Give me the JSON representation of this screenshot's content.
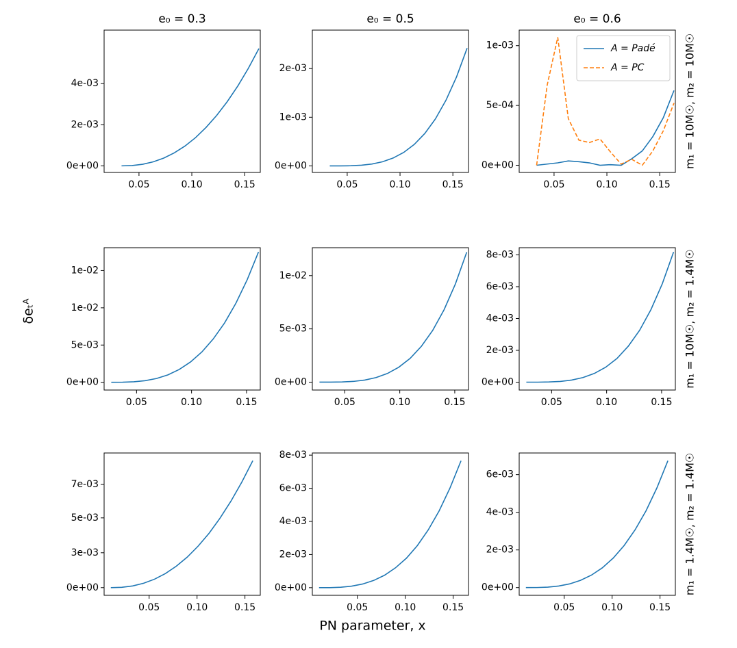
{
  "xlabel": "PN parameter, x",
  "ylabel": "δeₜᴬ",
  "chart_data": [
    {
      "type": "line",
      "title": "e₀ = 0.3",
      "x": [
        0.0335,
        0.0435,
        0.0535,
        0.0635,
        0.0735,
        0.0835,
        0.0935,
        0.1035,
        0.1135,
        0.1235,
        0.1335,
        0.1435,
        0.1535,
        0.1635
      ],
      "series": [
        {
          "name": "A = Padé",
          "color": "#1f77b4",
          "linestyle": "solid",
          "values": [
            0,
            1.56e-05,
            7.7e-05,
            0.000196,
            0.000379,
            0.000633,
            0.000963,
            0.00137,
            0.00187,
            0.00245,
            0.00312,
            0.00388,
            0.00474,
            0.0057
          ]
        }
      ],
      "xlim": [
        0.017,
        0.1648
      ],
      "ylim": [
        -0.00032,
        0.0066
      ],
      "xticks": [
        0.05,
        {
          "value": 0.1,
          "label": "0.10"
        },
        0.15
      ],
      "yticks": [
        {
          "value": 0,
          "label": "0e+00"
        },
        {
          "value": 0.002,
          "label": "2e-03"
        },
        {
          "value": 0.004,
          "label": "4e-03"
        }
      ]
    },
    {
      "type": "line",
      "title": "e₀ = 0.5",
      "x": [
        0.0335,
        0.0435,
        0.0535,
        0.0635,
        0.0735,
        0.0835,
        0.0935,
        0.1035,
        0.1135,
        0.1235,
        0.1335,
        0.1435,
        0.1535,
        0.1635
      ],
      "series": [
        {
          "name": "A = Padé",
          "color": "#1f77b4",
          "linestyle": "solid",
          "values": [
            0,
            3e-07,
            3.5e-06,
            1.43e-05,
            3.9e-05,
            8.54e-05,
            0.000162,
            0.000277,
            0.000442,
            0.000668,
            0.000966,
            0.00135,
            0.00183,
            0.00242
          ]
        }
      ],
      "xlim": [
        0.017,
        0.1648
      ],
      "ylim": [
        -0.000134,
        0.00279
      ],
      "xticks": [
        0.05,
        {
          "value": 0.1,
          "label": "0.10"
        },
        0.15
      ],
      "yticks": [
        {
          "value": 0,
          "label": "0e+00"
        },
        {
          "value": 0.001,
          "label": "1e-03"
        },
        {
          "value": 0.002,
          "label": "2e-03"
        }
      ]
    },
    {
      "type": "line",
      "title": "e₀ = 0.6",
      "row_label": "m₁ = 10M☉, m₂ = 10M☉",
      "legend": "upper right",
      "x": [
        0.0335,
        0.0435,
        0.0535,
        0.0635,
        0.0735,
        0.0835,
        0.0935,
        0.1035,
        0.1135,
        0.1235,
        0.1335,
        0.1435,
        0.1535,
        0.1635
      ],
      "series": [
        {
          "name": "A = Padé",
          "color": "#1f77b4",
          "linestyle": "solid",
          "values": [
            0,
            1e-05,
            2e-05,
            3.6e-05,
            3e-05,
            2e-05,
            0,
            5e-06,
            0,
            5.4e-05,
            0.00012,
            0.00024,
            0.0004,
            0.000625
          ]
        },
        {
          "name": "A = PC",
          "color": "#ff7f0e",
          "linestyle": "dashed",
          "values": [
            0,
            0.00067,
            0.00107,
            0.00039,
            0.00021,
            0.00019,
            0.00022,
            0.00011,
            1e-05,
            5e-05,
            0,
            0.00012,
            0.00029,
            0.00052
          ]
        }
      ],
      "xlim": [
        0.017,
        0.1648
      ],
      "ylim": [
        -6e-05,
        0.00113
      ],
      "xticks": [
        0.05,
        {
          "value": 0.1,
          "label": "0.10"
        },
        0.15
      ],
      "yticks": [
        {
          "value": 0,
          "label": "0e+00"
        },
        {
          "value": 0.0005,
          "label": "5e-04"
        },
        {
          "value": 0.001,
          "label": "1e-03"
        }
      ]
    },
    {
      "type": "line",
      "x": [
        0.027,
        0.0373,
        0.0476,
        0.0579,
        0.0682,
        0.0785,
        0.0888,
        0.0991,
        0.1094,
        0.1197,
        0.13,
        0.1403,
        0.1506,
        0.1609
      ],
      "series": [
        {
          "name": "A = Padé",
          "color": "#1f77b4",
          "linestyle": "solid",
          "values": [
            0,
            7.7e-06,
            6.1e-05,
            0.000207,
            0.000489,
            0.000956,
            0.00165,
            0.00262,
            0.00391,
            0.00558,
            0.00764,
            0.01018,
            0.01322,
            0.0168
          ]
        }
      ],
      "xlim": [
        0.0205,
        0.1625
      ],
      "ylim": [
        -0.001,
        0.01735
      ],
      "xticks": [
        0.05,
        {
          "value": 0.1,
          "label": "0.10"
        },
        0.15
      ],
      "yticks": [
        {
          "value": 0,
          "label": "0e+00"
        },
        {
          "value": 0.0048,
          "label": "5e-03"
        },
        {
          "value": 0.0096,
          "label": "1e-02"
        },
        {
          "value": 0.0144,
          "label": "1e-02"
        }
      ]
    },
    {
      "type": "line",
      "x": [
        0.027,
        0.0373,
        0.0476,
        0.0579,
        0.0682,
        0.0785,
        0.0888,
        0.0991,
        0.1094,
        0.1197,
        0.13,
        0.1403,
        0.1506,
        0.1609
      ],
      "series": [
        {
          "name": "A = Padé",
          "color": "#1f77b4",
          "linestyle": "solid",
          "values": [
            0,
            1.6e-06,
            1.7e-05,
            7.2e-05,
            0.000196,
            0.000431,
            0.000815,
            0.0014,
            0.00223,
            0.00337,
            0.00487,
            0.0068,
            0.00922,
            0.0122
          ]
        }
      ],
      "xlim": [
        0.0205,
        0.1625
      ],
      "ylim": [
        -0.00074,
        0.01262
      ],
      "xticks": [
        0.05,
        {
          "value": 0.1,
          "label": "0.10"
        },
        0.15
      ],
      "yticks": [
        {
          "value": 0,
          "label": "0e+00"
        },
        {
          "value": 0.005,
          "label": "5e-03"
        },
        {
          "value": 0.01,
          "label": "1e-02"
        }
      ]
    },
    {
      "type": "line",
      "row_label": "m₁ = 10M☉, m₂ = 1.4M☉",
      "x": [
        0.027,
        0.0373,
        0.0476,
        0.0579,
        0.0682,
        0.0785,
        0.0888,
        0.0991,
        0.1094,
        0.1197,
        0.13,
        0.1403,
        0.1506,
        0.1609
      ],
      "series": [
        {
          "name": "A = Padé",
          "color": "#1f77b4",
          "linestyle": "solid",
          "values": [
            0,
            1e-06,
            1.2e-05,
            4.8e-05,
            0.000132,
            0.000289,
            0.000546,
            0.000937,
            0.00149,
            0.00226,
            0.00326,
            0.00456,
            0.00618,
            0.00818
          ]
        }
      ],
      "xlim": [
        0.0205,
        0.1625
      ],
      "ylim": [
        -0.000494,
        0.00845
      ],
      "xticks": [
        0.05,
        {
          "value": 0.1,
          "label": "0.10"
        },
        0.15
      ],
      "yticks": [
        {
          "value": 0,
          "label": "0e+00"
        },
        {
          "value": 0.002,
          "label": "2e-03"
        },
        {
          "value": 0.004,
          "label": "4e-03"
        },
        {
          "value": 0.006,
          "label": "6e-03"
        },
        {
          "value": 0.008,
          "label": "8e-03"
        }
      ]
    },
    {
      "type": "line",
      "x": [
        0.01,
        0.0214,
        0.0328,
        0.0442,
        0.0556,
        0.067,
        0.0784,
        0.0898,
        0.1012,
        0.1126,
        0.124,
        0.1354,
        0.1468,
        0.1582
      ],
      "series": [
        {
          "name": "A = Padé",
          "color": "#1f77b4",
          "linestyle": "solid",
          "values": [
            0,
            2.5e-05,
            0.000123,
            0.000312,
            0.000605,
            0.00101,
            0.00154,
            0.00219,
            0.00298,
            0.0039,
            0.00498,
            0.0062,
            0.00757,
            0.0091
          ]
        }
      ],
      "xlim": [
        0.003,
        0.166
      ],
      "ylim": [
        -0.00055,
        0.00965
      ],
      "xticks": [
        0.05,
        {
          "value": 0.1,
          "label": "0.10"
        },
        0.15
      ],
      "yticks": [
        {
          "value": 0,
          "label": "0e+00"
        },
        {
          "value": 0.0025,
          "label": "3e-03"
        },
        {
          "value": 0.005,
          "label": "5e-03"
        },
        {
          "value": 0.0074,
          "label": "7e-03"
        }
      ]
    },
    {
      "type": "line",
      "x": [
        0.01,
        0.0214,
        0.0328,
        0.0442,
        0.0556,
        0.067,
        0.0784,
        0.0898,
        0.1012,
        0.1126,
        0.124,
        0.1354,
        0.1468,
        0.1582
      ],
      "series": [
        {
          "name": "A = Padé",
          "color": "#1f77b4",
          "linestyle": "solid",
          "values": [
            0,
            3.5e-06,
            2.8e-05,
            9.4e-05,
            0.000223,
            0.000436,
            0.000753,
            0.0012,
            0.00178,
            0.00254,
            0.00349,
            0.00464,
            0.00603,
            0.00766
          ]
        }
      ],
      "xlim": [
        0.003,
        0.166
      ],
      "ylim": [
        -0.00046,
        0.00813
      ],
      "xticks": [
        0.05,
        {
          "value": 0.1,
          "label": "0.10"
        },
        0.15
      ],
      "yticks": [
        {
          "value": 0,
          "label": "0e+00"
        },
        {
          "value": 0.002,
          "label": "2e-03"
        },
        {
          "value": 0.004,
          "label": "4e-03"
        },
        {
          "value": 0.006,
          "label": "6e-03"
        },
        {
          "value": 0.008,
          "label": "8e-03"
        }
      ]
    },
    {
      "type": "line",
      "row_label": "m₁ = 1.4M☉, m₂ = 1.4M☉",
      "x": [
        0.01,
        0.0214,
        0.0328,
        0.0442,
        0.0556,
        0.067,
        0.0784,
        0.0898,
        0.1012,
        0.1126,
        0.124,
        0.1354,
        0.1468,
        0.1582
      ],
      "series": [
        {
          "name": "A = Padé",
          "color": "#1f77b4",
          "linestyle": "solid",
          "values": [
            0,
            3.1e-06,
            2.5e-05,
            8.3e-05,
            0.000196,
            0.000384,
            0.000663,
            0.00105,
            0.00157,
            0.00224,
            0.00307,
            0.00408,
            0.0053,
            0.00674
          ]
        }
      ],
      "xlim": [
        0.003,
        0.166
      ],
      "ylim": [
        -0.00041,
        0.00715
      ],
      "xticks": [
        0.05,
        {
          "value": 0.1,
          "label": "0.10"
        },
        0.15
      ],
      "yticks": [
        {
          "value": 0,
          "label": "0e+00"
        },
        {
          "value": 0.002,
          "label": "2e-03"
        },
        {
          "value": 0.004,
          "label": "4e-03"
        },
        {
          "value": 0.006,
          "label": "6e-03"
        }
      ]
    }
  ]
}
